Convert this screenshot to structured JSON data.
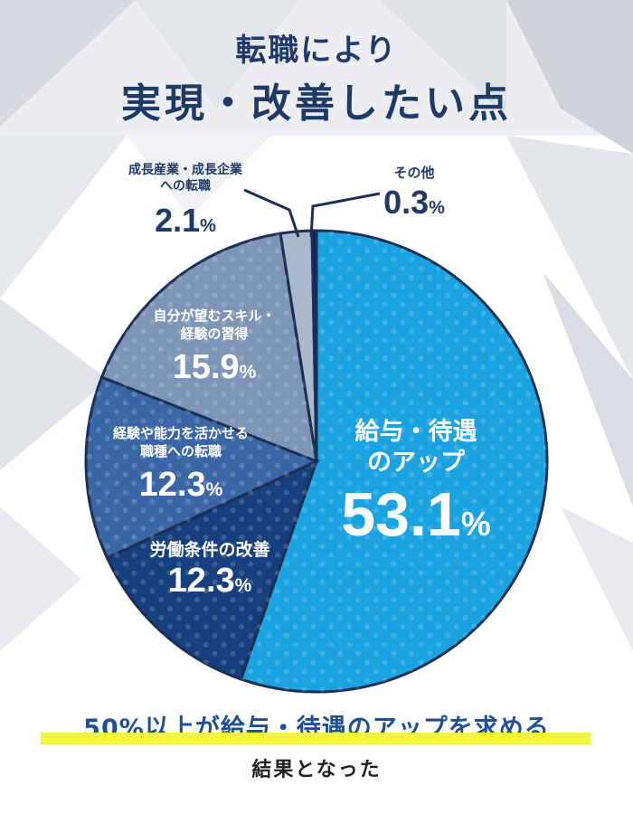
{
  "header": {
    "title_line1": "転職により",
    "title_line2": "実現・改善したい点"
  },
  "footer": {
    "line1": "50%以上が給与・待遇のアップを求める",
    "line2": "結果となった"
  },
  "colors": {
    "title": "#1f3a66",
    "slice_1": "#1aa3e0",
    "slice_2": "#163f7d",
    "slice_3": "#3a66a6",
    "slice_4": "#7d95b6",
    "slice_5": "#aab8cc",
    "slice_6": "#0e2146",
    "highlight": "#f2f53a"
  },
  "chart_data": {
    "type": "pie",
    "title": "転職により実現・改善したい点",
    "slices": [
      {
        "label_lines": [
          "給与・待遇",
          "のアップ"
        ],
        "value": 53.1,
        "value_text": "53.1",
        "unit": "%",
        "color": "#1aa3e0"
      },
      {
        "label_lines": [
          "労働条件の改善"
        ],
        "value": 12.3,
        "value_text": "12.3",
        "unit": "%",
        "color": "#163f7d"
      },
      {
        "label_lines": [
          "経験や能力を活かせる",
          "職種への転職"
        ],
        "value": 12.3,
        "value_text": "12.3",
        "unit": "%",
        "color": "#3a66a6"
      },
      {
        "label_lines": [
          "自分が望むスキル・",
          "経験の習得"
        ],
        "value": 15.9,
        "value_text": "15.9",
        "unit": "%",
        "color": "#7d95b6"
      },
      {
        "label_lines": [
          "成長産業・成長企業",
          "への転職"
        ],
        "value": 2.1,
        "value_text": "2.1",
        "unit": "%",
        "color": "#aab8cc"
      },
      {
        "label_lines": [
          "その他"
        ],
        "value": 0.3,
        "value_text": "0.3",
        "unit": "%",
        "color": "#0e2146"
      }
    ]
  }
}
